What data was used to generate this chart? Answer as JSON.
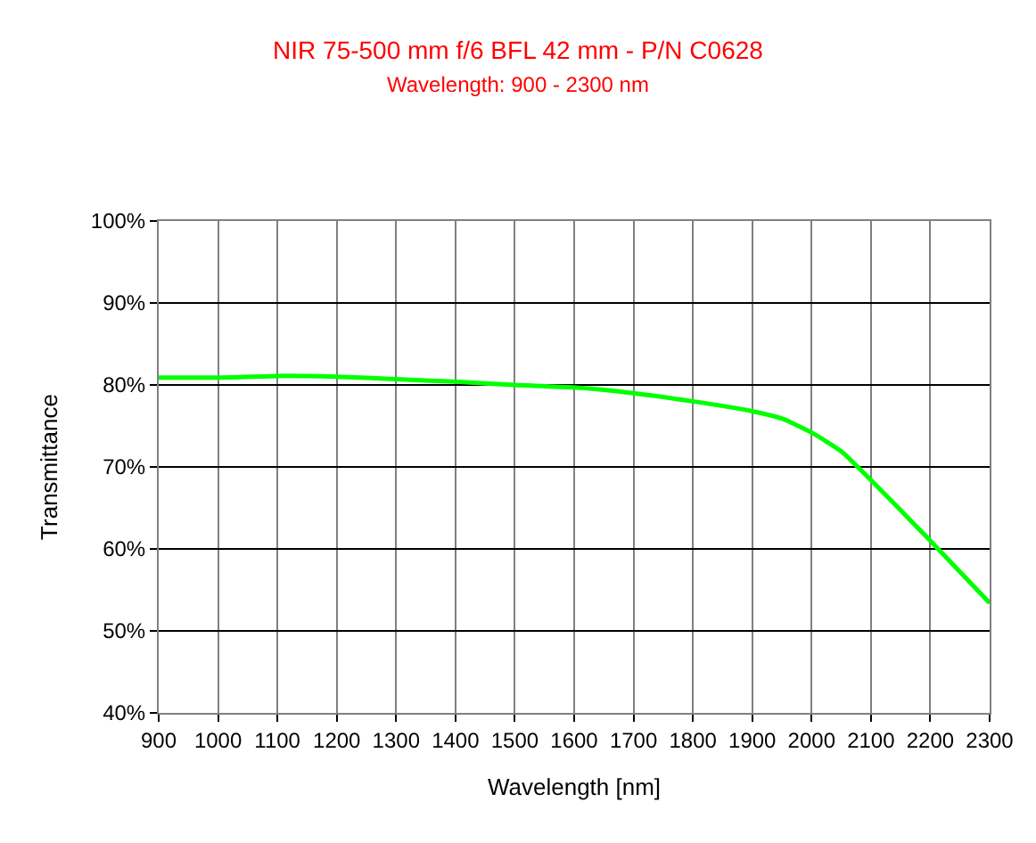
{
  "chart_data": {
    "type": "line",
    "title": "NIR 75-500 mm f/6 BFL 42 mm - P/N C0628",
    "subtitle": "Wavelength: 900 - 2300 nm",
    "xlabel": "Wavelength [nm]",
    "ylabel": "Transmittance",
    "x": [
      900,
      1000,
      1100,
      1200,
      1300,
      1400,
      1500,
      1600,
      1700,
      1800,
      1900,
      1950,
      2000,
      2050,
      2100,
      2200,
      2300
    ],
    "series": [
      {
        "color": "#00ff00",
        "values": [
          80.9,
          80.9,
          81.1,
          81.0,
          80.7,
          80.4,
          80.0,
          79.7,
          79.0,
          78.0,
          76.8,
          75.9,
          74.2,
          71.9,
          68.4,
          61.0,
          53.4
        ]
      }
    ],
    "xlim": [
      900,
      2300
    ],
    "xticks": [
      900,
      1000,
      1100,
      1200,
      1300,
      1400,
      1500,
      1600,
      1700,
      1800,
      1900,
      2000,
      2100,
      2200,
      2300
    ],
    "ylim": [
      40,
      100
    ],
    "yticks": [
      {
        "value": 40,
        "label": "40%"
      },
      {
        "value": 50,
        "label": "50%"
      },
      {
        "value": 60,
        "label": "60%"
      },
      {
        "value": 70,
        "label": "70%"
      },
      {
        "value": 80,
        "label": "80%"
      },
      {
        "value": 90,
        "label": "90%"
      },
      {
        "value": 100,
        "label": "100%"
      }
    ],
    "grid": true,
    "marker": "none",
    "line_style": "solid"
  }
}
